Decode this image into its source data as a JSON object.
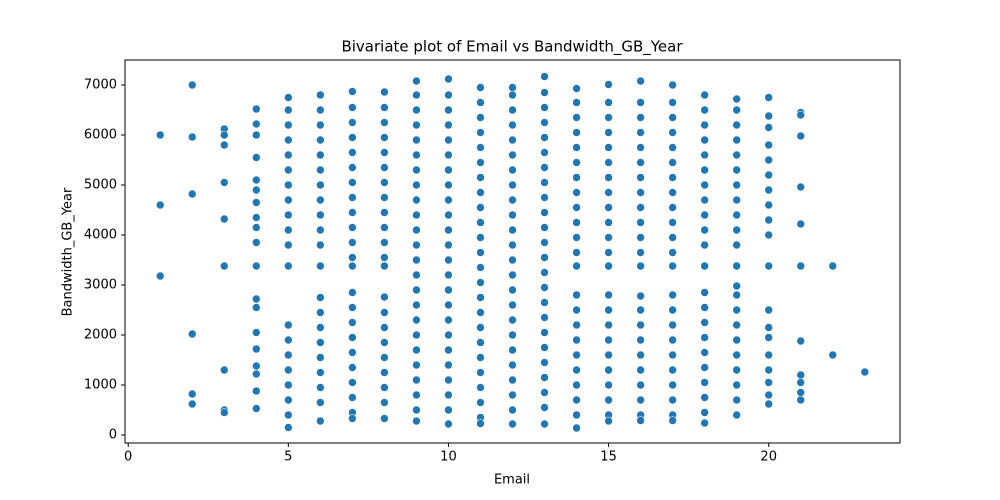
{
  "chart_data": {
    "type": "scatter",
    "title": "Bivariate plot of Email vs Bandwidth_GB_Year",
    "x_label": "Email",
    "y_label": "Bandwidth_GB_Year",
    "color": "#1f77b4",
    "xlim": [
      -0.1,
      24.1
    ],
    "ylim": [
      -160,
      7500
    ],
    "xticks": [
      0,
      5,
      10,
      15,
      20
    ],
    "yticks": [
      0,
      1000,
      2000,
      3000,
      4000,
      5000,
      6000,
      7000
    ],
    "x": [
      1,
      1,
      1,
      2,
      2,
      2,
      2,
      2,
      2,
      3,
      3,
      3,
      3,
      3,
      3,
      3,
      3,
      3,
      4,
      4,
      4,
      4,
      4,
      4,
      4,
      4,
      4,
      4,
      4,
      4,
      4,
      4,
      4,
      4,
      4,
      4,
      4,
      5,
      5,
      5,
      5,
      5,
      5,
      5,
      5,
      5,
      5,
      5,
      5,
      5,
      5,
      5,
      5,
      5,
      5,
      5,
      5,
      6,
      6,
      6,
      6,
      6,
      6,
      6,
      6,
      6,
      6,
      6,
      6,
      6,
      6,
      6,
      6,
      6,
      6,
      6,
      6,
      6,
      7,
      7,
      7,
      7,
      7,
      7,
      7,
      7,
      7,
      7,
      7,
      7,
      7,
      7,
      7,
      7,
      7,
      7,
      7,
      7,
      7,
      7,
      7,
      8,
      8,
      8,
      8,
      8,
      8,
      8,
      8,
      8,
      8,
      8,
      8,
      8,
      8,
      8,
      8,
      8,
      8,
      8,
      8,
      8,
      8,
      9,
      9,
      9,
      9,
      9,
      9,
      9,
      9,
      9,
      9,
      9,
      9,
      9,
      9,
      9,
      9,
      9,
      9,
      9,
      9,
      9,
      9,
      9,
      9,
      10,
      10,
      10,
      10,
      10,
      10,
      10,
      10,
      10,
      10,
      10,
      10,
      10,
      10,
      10,
      10,
      10,
      10,
      10,
      10,
      10,
      10,
      10,
      10,
      11,
      11,
      11,
      11,
      11,
      11,
      11,
      11,
      11,
      11,
      11,
      11,
      11,
      11,
      11,
      11,
      11,
      11,
      11,
      11,
      11,
      11,
      11,
      11,
      12,
      12,
      12,
      12,
      12,
      12,
      12,
      12,
      12,
      12,
      12,
      12,
      12,
      12,
      12,
      12,
      12,
      12,
      12,
      12,
      12,
      12,
      12,
      12,
      13,
      13,
      13,
      13,
      13,
      13,
      13,
      13,
      13,
      13,
      13,
      13,
      13,
      13,
      13,
      13,
      13,
      13,
      13,
      13,
      13,
      13,
      13,
      13,
      14,
      14,
      14,
      14,
      14,
      14,
      14,
      14,
      14,
      14,
      14,
      14,
      14,
      14,
      14,
      14,
      14,
      14,
      14,
      14,
      14,
      14,
      14,
      15,
      15,
      15,
      15,
      15,
      15,
      15,
      15,
      15,
      15,
      15,
      15,
      15,
      15,
      15,
      15,
      15,
      15,
      15,
      15,
      15,
      15,
      15,
      16,
      16,
      16,
      16,
      16,
      16,
      16,
      16,
      16,
      16,
      16,
      16,
      16,
      16,
      16,
      16,
      16,
      16,
      16,
      16,
      16,
      16,
      16,
      17,
      17,
      17,
      17,
      17,
      17,
      17,
      17,
      17,
      17,
      17,
      17,
      17,
      17,
      17,
      17,
      17,
      17,
      17,
      17,
      17,
      17,
      17,
      18,
      18,
      18,
      18,
      18,
      18,
      18,
      18,
      18,
      18,
      18,
      18,
      18,
      18,
      18,
      18,
      18,
      18,
      18,
      18,
      18,
      18,
      19,
      19,
      19,
      19,
      19,
      19,
      19,
      19,
      19,
      19,
      19,
      19,
      19,
      19,
      19,
      19,
      19,
      19,
      19,
      19,
      19,
      19,
      20,
      20,
      20,
      20,
      20,
      20,
      20,
      20,
      20,
      20,
      20,
      20,
      20,
      20,
      20,
      20,
      20,
      20,
      20,
      21,
      21,
      21,
      21,
      21,
      21,
      21,
      21,
      21,
      21,
      21,
      22,
      22,
      23
    ],
    "values": [
      6000,
      4600,
      3180,
      7000,
      5960,
      4820,
      2020,
      820,
      620,
      6120,
      6000,
      5800,
      5050,
      4320,
      3380,
      1300,
      500,
      450,
      6520,
      6220,
      6000,
      5550,
      5100,
      4900,
      4650,
      4350,
      4150,
      3850,
      3380,
      2720,
      2550,
      2050,
      1720,
      1380,
      1220,
      880,
      530,
      6750,
      6500,
      6200,
      5900,
      5600,
      5300,
      5000,
      4700,
      4400,
      4100,
      3800,
      3380,
      2200,
      1900,
      1600,
      1300,
      1000,
      700,
      400,
      150,
      6800,
      6500,
      6200,
      5900,
      5600,
      5300,
      5000,
      4700,
      4400,
      4100,
      3800,
      3380,
      2750,
      2450,
      2150,
      1850,
      1550,
      1250,
      950,
      650,
      280,
      6870,
      6550,
      6250,
      5950,
      5650,
      5350,
      5050,
      4750,
      4450,
      4150,
      3850,
      3550,
      3380,
      2850,
      2550,
      2250,
      1950,
      1650,
      1350,
      1050,
      750,
      450,
      330,
      6860,
      6550,
      6250,
      5950,
      5650,
      5350,
      5050,
      4750,
      4450,
      4150,
      3850,
      3550,
      3380,
      2760,
      2450,
      2150,
      1850,
      1550,
      1250,
      950,
      650,
      330,
      7080,
      6800,
      6500,
      6200,
      5900,
      5600,
      5300,
      5000,
      4700,
      4400,
      4100,
      3800,
      3500,
      3200,
      2900,
      2600,
      2300,
      2000,
      1700,
      1400,
      1100,
      800,
      500,
      280,
      7120,
      6800,
      6500,
      6200,
      5900,
      5600,
      5300,
      5000,
      4700,
      4400,
      4100,
      3800,
      3500,
      3200,
      2900,
      2600,
      2300,
      2000,
      1700,
      1400,
      1100,
      800,
      500,
      220,
      6950,
      6650,
      6350,
      6050,
      5750,
      5450,
      5150,
      4850,
      4550,
      4250,
      3950,
      3650,
      3350,
      3050,
      2750,
      2450,
      2150,
      1850,
      1550,
      1250,
      950,
      650,
      350,
      230,
      6950,
      6800,
      6500,
      6200,
      5900,
      5600,
      5300,
      5000,
      4700,
      4400,
      4100,
      3800,
      3500,
      3200,
      2900,
      2600,
      2300,
      2000,
      1700,
      1400,
      1100,
      800,
      500,
      220,
      7170,
      6850,
      6550,
      6250,
      5950,
      5650,
      5350,
      5050,
      4750,
      4450,
      4150,
      3850,
      3550,
      3250,
      2950,
      2650,
      2350,
      2050,
      1750,
      1450,
      1150,
      850,
      550,
      220,
      6930,
      6650,
      6350,
      6050,
      5750,
      5450,
      5150,
      4850,
      4550,
      4250,
      3950,
      3650,
      3380,
      2800,
      2500,
      2200,
      1900,
      1600,
      1300,
      1000,
      700,
      400,
      140,
      7010,
      6650,
      6350,
      6050,
      5750,
      5450,
      5150,
      4850,
      4550,
      4250,
      3950,
      3650,
      3380,
      2800,
      2500,
      2200,
      1900,
      1600,
      1300,
      1000,
      700,
      400,
      280,
      7080,
      6650,
      6350,
      6050,
      5750,
      5450,
      5150,
      4850,
      4550,
      4250,
      3950,
      3650,
      3380,
      2780,
      2500,
      2200,
      1900,
      1600,
      1300,
      1000,
      700,
      400,
      290,
      7000,
      6650,
      6350,
      6050,
      5750,
      5450,
      5150,
      4850,
      4550,
      4250,
      3950,
      3650,
      3380,
      2800,
      2500,
      2200,
      1900,
      1600,
      1300,
      1000,
      700,
      400,
      290,
      6800,
      6500,
      6200,
      5900,
      5600,
      5300,
      5000,
      4700,
      4400,
      4100,
      3800,
      3380,
      2850,
      2550,
      2250,
      1950,
      1650,
      1350,
      1050,
      750,
      450,
      240,
      6720,
      6500,
      6200,
      5900,
      5600,
      5300,
      5000,
      4700,
      4400,
      4100,
      3800,
      3380,
      2980,
      2800,
      2500,
      2200,
      1900,
      1600,
      1300,
      1000,
      700,
      400,
      6750,
      6380,
      6150,
      5800,
      5500,
      5200,
      4900,
      4600,
      4300,
      4000,
      3380,
      2500,
      2150,
      1950,
      1600,
      1300,
      1050,
      800,
      620,
      6450,
      6400,
      5980,
      4960,
      4220,
      3380,
      1880,
      1200,
      1050,
      850,
      700,
      3380,
      1600,
      1260
    ]
  }
}
